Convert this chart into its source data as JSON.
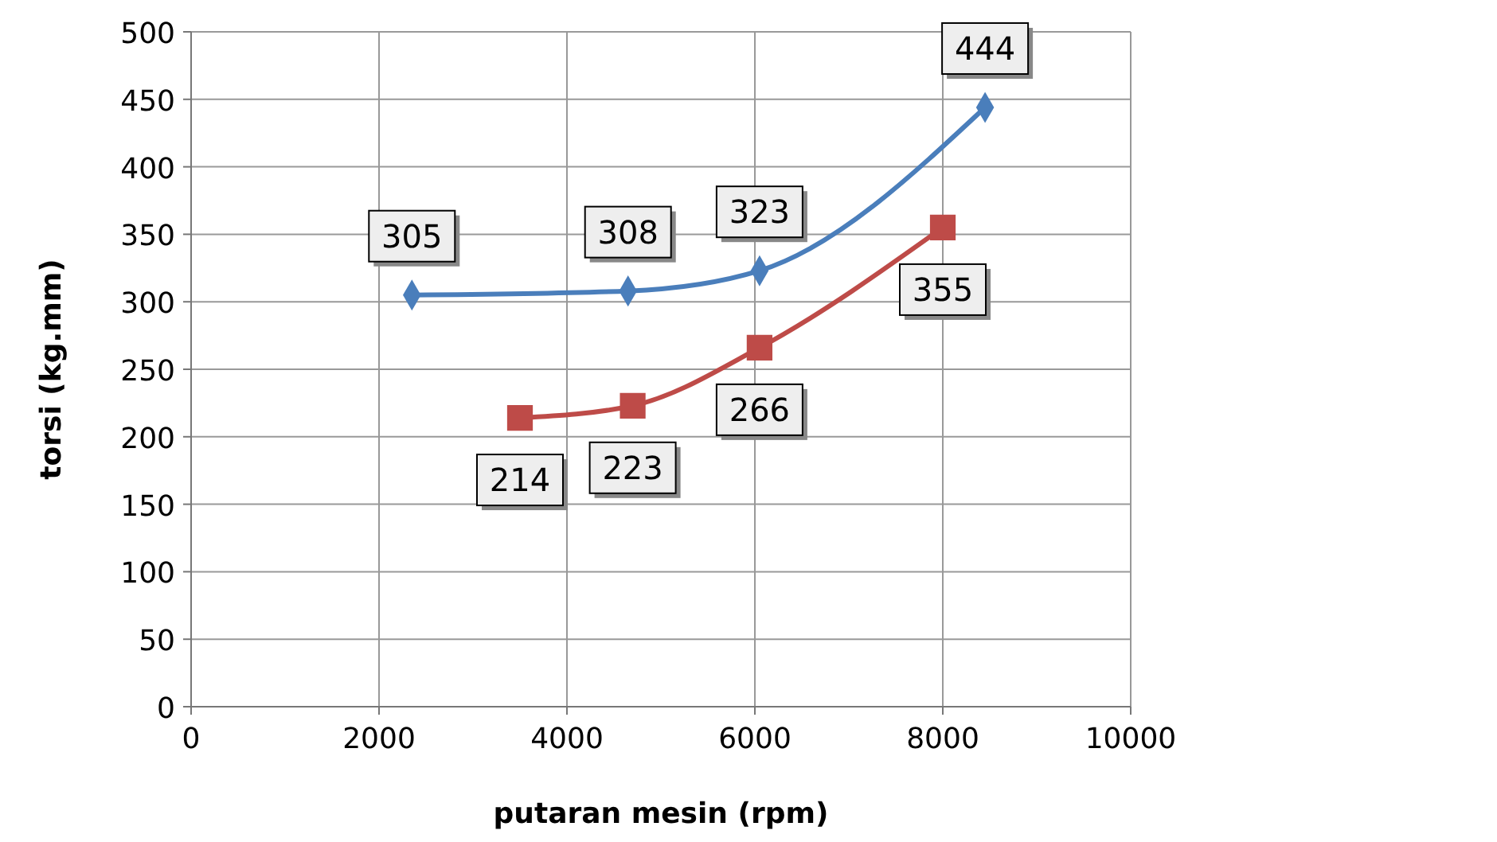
{
  "chart_data": {
    "type": "line",
    "xlabel": "putaran mesin (rpm)",
    "ylabel": "torsi (kg.mm)",
    "xlim": [
      0,
      10000
    ],
    "xticks": [
      0,
      2000,
      4000,
      6000,
      8000,
      10000
    ],
    "ylim": [
      0,
      500
    ],
    "yticks": [
      0,
      50,
      100,
      150,
      200,
      250,
      300,
      350,
      400,
      450,
      500
    ],
    "grid": true,
    "data_labels": true,
    "series": [
      {
        "color": "#4a7ebb",
        "marker": "diamond",
        "x": [
          2350,
          4650,
          6050,
          8450
        ],
        "values": [
          305,
          308,
          323,
          444
        ]
      },
      {
        "color": "#be4b48",
        "marker": "square",
        "x": [
          3500,
          4700,
          6050,
          8000
        ],
        "values": [
          214,
          223,
          266,
          355
        ]
      }
    ]
  }
}
